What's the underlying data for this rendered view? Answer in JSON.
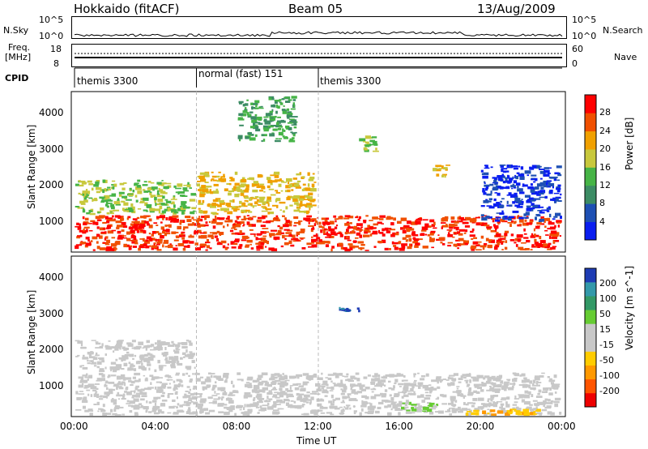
{
  "header": {
    "title": "Hokkaido (fitACF)",
    "beam": "Beam 05",
    "date": "13/Aug/2009"
  },
  "strips": {
    "nsky_label": "N.Sky",
    "nsky_ticks": [
      "10^5",
      "10^0"
    ],
    "nsearch_label": "N.Search",
    "freq_label_1": "Freq.",
    "freq_label_2": "[MHz]",
    "freq_ticks": [
      "18",
      "8"
    ],
    "nave_ticks": [
      "60",
      "0"
    ],
    "nave_label": "Nave",
    "cpid_label": "CPID",
    "cpid_segments": [
      {
        "name": "themis 3300",
        "start": 0,
        "end": 6
      },
      {
        "name": "normal (fast) 151",
        "start": 6,
        "end": 12
      },
      {
        "name": "themis 3300",
        "start": 12,
        "end": 24
      }
    ]
  },
  "axes": {
    "ylabel": "Slant Range [km]",
    "yticks": [
      "4000",
      "3000",
      "2000",
      "1000"
    ],
    "xlabel": "Time UT",
    "xticks": [
      "00:00",
      "04:00",
      "08:00",
      "12:00",
      "16:00",
      "20:00",
      "00:00"
    ]
  },
  "colors": {
    "power": [
      "#0a1ef0",
      "#1e50b4",
      "#3c8c64",
      "#46b446",
      "#c8c83c",
      "#f0a000",
      "#f05000",
      "#ff0000"
    ],
    "velocity": [
      "#ee0000",
      "#ff5500",
      "#ff9900",
      "#ffcc00",
      "#c8c8c8",
      "#c8c8c8",
      "#66cc33",
      "#339966",
      "#3399aa",
      "#1e3cb4"
    ]
  },
  "chart_data": [
    {
      "type": "heatmap",
      "title": "",
      "xlabel": "Time UT",
      "ylabel": "Slant Range [km]",
      "xlim": [
        0,
        24
      ],
      "ylim": [
        180,
        4600
      ],
      "colorbar_label": "Power [dB]",
      "colorbar_ticks": [
        "28",
        "24",
        "20",
        "16",
        "12",
        "8",
        "4"
      ],
      "clim": [
        0,
        32
      ],
      "regions": [
        {
          "t": [
            0,
            24
          ],
          "r": [
            200,
            1200
          ],
          "v": 28
        },
        {
          "t": [
            0,
            6
          ],
          "r": [
            1200,
            2200
          ],
          "v": 16
        },
        {
          "t": [
            6,
            12
          ],
          "r": [
            1200,
            2400
          ],
          "v": 20
        },
        {
          "t": [
            8,
            11
          ],
          "r": [
            3200,
            4500
          ],
          "v": 12
        },
        {
          "t": [
            14,
            15
          ],
          "r": [
            2900,
            3400
          ],
          "v": 16
        },
        {
          "t": [
            17.5,
            18.5
          ],
          "r": [
            2200,
            2600
          ],
          "v": 20
        },
        {
          "t": [
            20,
            24
          ],
          "r": [
            1000,
            2600
          ],
          "v": 4
        }
      ]
    },
    {
      "type": "heatmap",
      "title": "",
      "xlabel": "Time UT",
      "ylabel": "Slant Range [km]",
      "xlim": [
        0,
        24
      ],
      "ylim": [
        180,
        4600
      ],
      "colorbar_label": "Velocity [m s^-1]",
      "colorbar_ticks": [
        "200",
        "100",
        "50",
        "15",
        "-15",
        "-50",
        "-100",
        "-200"
      ],
      "clim": [
        -250,
        250
      ],
      "regions": [
        {
          "t": [
            0,
            24
          ],
          "r": [
            200,
            1400
          ],
          "v": 0
        },
        {
          "t": [
            0,
            6
          ],
          "r": [
            1400,
            2300
          ],
          "v": 0
        },
        {
          "t": [
            13,
            14.5
          ],
          "r": [
            3000,
            3200
          ],
          "v": 200
        },
        {
          "t": [
            16,
            18
          ],
          "r": [
            300,
            600
          ],
          "v": 50
        },
        {
          "t": [
            19,
            23
          ],
          "r": [
            200,
            400
          ],
          "v": -100
        }
      ]
    }
  ]
}
